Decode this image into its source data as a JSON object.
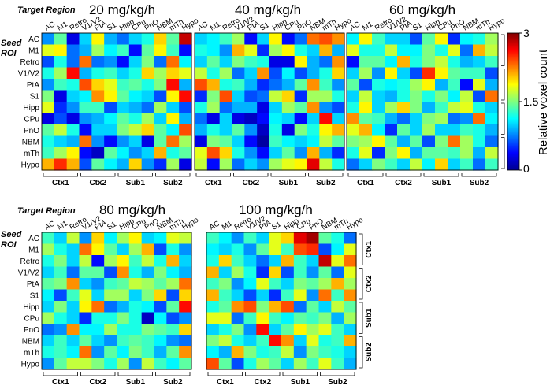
{
  "figure": {
    "target_region_label": "Target Region",
    "seed_label_line1": "Seed",
    "seed_label_line2": "ROI"
  },
  "colorbar": {
    "label": "Relative voxel count",
    "tick_top": "3",
    "tick_mid": "1.5",
    "tick_bottom": "0"
  },
  "chart_data": [
    {
      "type": "heatmap",
      "title": "20 mg/kg/h",
      "x_labels": [
        "AC",
        "M1",
        "Retro",
        "V1/V2",
        "PtA",
        "S1",
        "Hipp",
        "CPu",
        "PnO",
        "NBM",
        "mTh",
        "Hypo"
      ],
      "y_labels": [
        "AC",
        "M1",
        "Retro",
        "V1/V2",
        "PtA",
        "S1",
        "Hipp",
        "CPu",
        "PnO",
        "NBM",
        "mTh",
        "Hypo"
      ],
      "x_groups": [
        "Ctx1",
        "Ctx2",
        "Sub1",
        "Sub2"
      ],
      "color_range": [
        0,
        3
      ],
      "values": [
        [
          0.8,
          1.4,
          0.3,
          1.0,
          1.9,
          0.9,
          0.7,
          1.0,
          1.2,
          2.0,
          1.4,
          2.8
        ],
        [
          1.8,
          1.9,
          0.7,
          0.9,
          1.6,
          1.1,
          1.3,
          0.4,
          1.4,
          1.9,
          1.3,
          0.4
        ],
        [
          0.6,
          1.2,
          0.7,
          2.3,
          0.7,
          0.8,
          0.4,
          1.0,
          1.5,
          0.7,
          2.3,
          1.1
        ],
        [
          1.2,
          1.6,
          2.6,
          0.9,
          1.2,
          1.3,
          1.0,
          1.2,
          2.0,
          1.6,
          2.0,
          1.8
        ],
        [
          0.8,
          1.3,
          1.2,
          2.4,
          2.0,
          1.8,
          1.3,
          1.4,
          1.2,
          1.5,
          2.6,
          0.9
        ],
        [
          1.5,
          0.3,
          1.0,
          1.1,
          2.2,
          1.9,
          1.4,
          1.1,
          1.0,
          0.6,
          1.9,
          2.6
        ],
        [
          1.8,
          0.5,
          0.8,
          1.3,
          1.3,
          0.6,
          1.0,
          0.9,
          0.7,
          1.6,
          1.0,
          0.6
        ],
        [
          0.3,
          0.6,
          0.3,
          0.8,
          0.9,
          1.1,
          1.4,
          1.2,
          1.6,
          1.0,
          1.9,
          0.9
        ],
        [
          1.4,
          1.7,
          1.2,
          0.4,
          1.0,
          1.0,
          1.5,
          1.7,
          2.0,
          1.4,
          1.1,
          2.4
        ],
        [
          1.2,
          1.0,
          0.9,
          2.3,
          0.8,
          0.4,
          0.8,
          1.0,
          0.3,
          1.4,
          2.3,
          1.6
        ],
        [
          1.3,
          1.6,
          1.9,
          0.4,
          0.2,
          1.4,
          1.1,
          0.8,
          1.0,
          2.1,
          1.2,
          1.4
        ],
        [
          2.1,
          2.5,
          2.1,
          0.6,
          1.4,
          1.1,
          0.9,
          2.0,
          0.8,
          0.5,
          1.6,
          0.3
        ]
      ]
    },
    {
      "type": "heatmap",
      "title": "40 mg/kg/h",
      "x_labels": [
        "AC",
        "M1",
        "Retro",
        "V1/V2",
        "PtA",
        "S1",
        "Hipp",
        "CPu",
        "PnO",
        "NBM",
        "mTh",
        "Hypo"
      ],
      "y_labels": [
        "AC",
        "M1",
        "Retro",
        "V1/V2",
        "PtA",
        "S1",
        "Hipp",
        "CPu",
        "PnO",
        "NBM",
        "mTh",
        "Hypo"
      ],
      "x_groups": [
        "Ctx1",
        "Ctx2",
        "Sub1",
        "Sub2"
      ],
      "color_range": [
        0,
        3
      ],
      "values": [
        [
          1.0,
          1.1,
          1.3,
          1.6,
          0.4,
          1.0,
          1.9,
          0.4,
          0.7,
          2.3,
          2.4,
          2.2
        ],
        [
          1.2,
          1.1,
          0.8,
          2.1,
          1.8,
          0.5,
          1.6,
          1.9,
          1.2,
          1.0,
          2.1,
          0.9
        ],
        [
          1.0,
          1.4,
          1.0,
          1.5,
          1.3,
          1.2,
          0.3,
          0.3,
          1.9,
          0.9,
          0.7,
          2.2
        ],
        [
          1.7,
          1.2,
          1.6,
          0.7,
          1.0,
          2.2,
          0.6,
          1.1,
          0.6,
          0.9,
          1.2,
          2.0
        ],
        [
          2.4,
          2.1,
          1.2,
          1.3,
          0.9,
          0.5,
          0.7,
          0.9,
          1.4,
          2.2,
          1.3,
          0.8
        ],
        [
          0.5,
          1.5,
          2.4,
          1.0,
          0.6,
          0.7,
          1.7,
          2.0,
          0.5,
          1.6,
          1.6,
          1.2
        ],
        [
          1.2,
          1.6,
          0.7,
          0.9,
          0.9,
          0.3,
          1.0,
          1.6,
          1.4,
          2.2,
          0.8,
          0.6
        ],
        [
          0.7,
          0.3,
          1.0,
          0.3,
          0.2,
          0.4,
          1.1,
          1.0,
          0.4,
          1.0,
          2.6,
          1.0
        ],
        [
          0.9,
          1.2,
          1.0,
          1.4,
          0.8,
          0.2,
          1.2,
          0.3,
          1.5,
          1.2,
          1.9,
          2.1
        ],
        [
          0.3,
          1.5,
          1.4,
          1.0,
          0.4,
          0.1,
          1.3,
          1.1,
          1.0,
          1.1,
          1.7,
          1.4
        ],
        [
          1.8,
          2.4,
          2.0,
          1.2,
          0.8,
          0.4,
          1.0,
          1.4,
          0.8,
          2.1,
          0.9,
          0.5
        ],
        [
          1.7,
          0.4,
          1.6,
          0.7,
          1.0,
          0.8,
          1.6,
          1.8,
          1.9,
          2.7,
          1.7,
          1.2
        ]
      ]
    },
    {
      "type": "heatmap",
      "title": "60 mg/kg/h",
      "x_labels": [
        "AC",
        "M1",
        "Retro",
        "V1/V2",
        "PtA",
        "S1",
        "Hipp",
        "CPu",
        "PnO",
        "NBM",
        "mTh",
        "Hypo"
      ],
      "y_labels": [
        "AC",
        "M1",
        "Retro",
        "V1/V2",
        "PtA",
        "S1",
        "Hipp",
        "CPu",
        "PnO",
        "NBM",
        "mTh",
        "Hypo"
      ],
      "x_groups": [
        "Ctx1",
        "Ctx2",
        "Sub1",
        "Sub2"
      ],
      "color_range": [
        0,
        3
      ],
      "values": [
        [
          1.1,
          1.9,
          1.3,
          1.0,
          1.0,
          0.6,
          1.4,
          1.9,
          0.5,
          1.1,
          1.2,
          1.6
        ],
        [
          1.8,
          1.2,
          1.2,
          1.7,
          1.1,
          1.1,
          1.5,
          1.2,
          1.8,
          0.7,
          2.1,
          1.7
        ],
        [
          0.4,
          1.4,
          1.4,
          1.1,
          2.1,
          1.2,
          1.5,
          1.7,
          1.2,
          0.9,
          1.0,
          1.3
        ],
        [
          1.0,
          1.6,
          0.8,
          1.9,
          1.0,
          0.6,
          2.5,
          1.9,
          1.4,
          1.3,
          1.3,
          0.6
        ],
        [
          1.4,
          0.6,
          1.2,
          1.1,
          1.2,
          1.6,
          1.9,
          0.9,
          1.3,
          0.4,
          1.8,
          0.9
        ],
        [
          1.0,
          1.7,
          1.0,
          0.9,
          1.2,
          1.5,
          1.2,
          1.5,
          1.1,
          1.7,
          0.6,
          2.3
        ],
        [
          1.2,
          1.9,
          1.0,
          1.6,
          2.0,
          1.5,
          0.9,
          1.3,
          1.7,
          1.8,
          1.2,
          1.0
        ],
        [
          2.2,
          1.4,
          1.3,
          0.9,
          0.7,
          1.0,
          1.5,
          1.6,
          0.7,
          0.8,
          2.3,
          1.1
        ],
        [
          1.8,
          2.1,
          1.1,
          0.5,
          1.4,
          1.0,
          1.6,
          1.0,
          1.0,
          1.3,
          1.2,
          0.9
        ],
        [
          1.5,
          1.6,
          1.9,
          1.4,
          0.9,
          1.4,
          0.6,
          1.5,
          2.3,
          1.6,
          1.2,
          0.7
        ],
        [
          1.2,
          1.8,
          0.5,
          1.5,
          1.9,
          0.9,
          1.4,
          1.4,
          1.3,
          1.6,
          0.9,
          1.7
        ],
        [
          0.7,
          1.0,
          1.5,
          1.3,
          1.0,
          1.7,
          1.1,
          2.0,
          1.0,
          1.3,
          0.7,
          1.3
        ]
      ]
    },
    {
      "type": "heatmap",
      "title": "80 mg/kg/h",
      "x_labels": [
        "AC",
        "M1",
        "Retro",
        "V1/V2",
        "PtA",
        "S1",
        "Hipp",
        "CPu",
        "PnO",
        "NBM",
        "mTh",
        "Hypo"
      ],
      "y_labels": [
        "AC",
        "M1",
        "Retro",
        "V1/V2",
        "PtA",
        "S1",
        "Hipp",
        "CPu",
        "PnO",
        "NBM",
        "mTh",
        "Hypo"
      ],
      "x_groups": [
        "Ctx1",
        "Ctx2",
        "Sub1",
        "Sub2"
      ],
      "color_range": [
        0,
        3
      ],
      "values": [
        [
          1.3,
          1.0,
          1.7,
          0.8,
          2.0,
          1.1,
          1.6,
          1.9,
          1.0,
          1.1,
          1.8,
          1.7
        ],
        [
          1.6,
          1.2,
          1.0,
          2.3,
          1.9,
          1.4,
          1.0,
          1.6,
          2.1,
          0.6,
          1.2,
          0.8
        ],
        [
          1.2,
          1.5,
          1.0,
          1.7,
          0.4,
          1.6,
          1.9,
          1.3,
          1.7,
          1.2,
          2.1,
          1.0
        ],
        [
          1.0,
          1.3,
          0.7,
          1.4,
          1.4,
          0.6,
          2.2,
          1.2,
          0.9,
          1.5,
          1.1,
          0.9
        ],
        [
          1.4,
          1.5,
          2.2,
          1.0,
          0.8,
          1.3,
          1.4,
          1.7,
          1.6,
          1.4,
          1.6,
          2.3
        ],
        [
          1.1,
          0.6,
          1.3,
          1.8,
          1.0,
          1.6,
          1.6,
          1.0,
          1.5,
          2.0,
          0.6,
          2.0
        ],
        [
          1.0,
          1.5,
          1.0,
          1.9,
          2.3,
          0.7,
          0.9,
          1.2,
          1.1,
          0.6,
          1.4,
          2.6
        ],
        [
          1.6,
          1.2,
          1.0,
          0.5,
          1.2,
          1.2,
          1.5,
          1.2,
          0.2,
          1.1,
          0.6,
          0.8
        ],
        [
          0.7,
          0.8,
          2.2,
          1.1,
          1.1,
          1.6,
          1.2,
          1.2,
          1.5,
          1.4,
          1.3,
          2.0
        ],
        [
          1.0,
          1.3,
          1.0,
          1.4,
          1.0,
          0.8,
          1.3,
          1.4,
          1.3,
          1.1,
          0.8,
          0.7
        ],
        [
          1.2,
          1.3,
          1.1,
          2.3,
          0.8,
          1.4,
          1.1,
          1.5,
          1.3,
          0.9,
          1.4,
          2.2
        ],
        [
          0.8,
          1.4,
          1.7,
          1.7,
          1.5,
          1.2,
          1.6,
          0.8,
          1.7,
          1.3,
          1.1,
          1.4
        ]
      ]
    },
    {
      "type": "heatmap",
      "title": "100 mg/kg/h",
      "x_labels": [
        "AC",
        "M1",
        "Retro",
        "V1/V2",
        "PtA",
        "S1",
        "Hipp",
        "CPu",
        "PnO",
        "NBM",
        "mTh",
        "Hypo"
      ],
      "y_labels": [
        "AC",
        "M1",
        "Retro",
        "V1/V2",
        "PtA",
        "S1",
        "Hipp",
        "CPu",
        "PnO",
        "NBM",
        "mTh",
        "Hypo"
      ],
      "x_groups": [
        "Ctx1",
        "Ctx2",
        "Sub1",
        "Sub2"
      ],
      "color_range": [
        0,
        3
      ],
      "values": [
        [
          1.3,
          1.1,
          0.8,
          1.3,
          1.0,
          1.8,
          2.0,
          2.7,
          2.9,
          1.4,
          1.2,
          0.7
        ],
        [
          1.1,
          1.0,
          1.2,
          0.8,
          1.4,
          1.8,
          1.3,
          2.4,
          2.5,
          0.6,
          1.1,
          1.8
        ],
        [
          1.2,
          2.0,
          1.3,
          1.0,
          0.7,
          1.0,
          2.1,
          1.3,
          1.0,
          2.8,
          1.8,
          2.3
        ],
        [
          2.1,
          1.0,
          1.6,
          1.2,
          0.5,
          2.0,
          0.6,
          1.3,
          0.8,
          1.4,
          0.7,
          1.8
        ],
        [
          1.3,
          1.5,
          0.8,
          1.1,
          1.8,
          1.3,
          1.0,
          1.5,
          1.4,
          1.6,
          2.1,
          1.6
        ],
        [
          2.1,
          1.3,
          1.0,
          0.6,
          1.0,
          0.5,
          1.3,
          1.8,
          0.8,
          2.3,
          1.3,
          2.2
        ],
        [
          1.2,
          1.4,
          2.2,
          2.4,
          1.5,
          2.1,
          2.4,
          0.7,
          1.4,
          1.0,
          1.7,
          1.4
        ],
        [
          1.8,
          1.8,
          0.7,
          1.3,
          1.9,
          1.3,
          1.1,
          1.4,
          1.3,
          1.5,
          0.9,
          1.6
        ],
        [
          1.0,
          1.2,
          1.5,
          0.8,
          2.6,
          1.0,
          1.4,
          1.9,
          1.6,
          1.8,
          1.3,
          1.0
        ],
        [
          1.5,
          1.7,
          1.2,
          1.0,
          1.3,
          2.6,
          2.2,
          1.0,
          1.8,
          1.2,
          1.3,
          2.1
        ],
        [
          1.1,
          0.9,
          2.1,
          1.5,
          1.2,
          1.3,
          1.7,
          0.8,
          1.5,
          1.3,
          1.2,
          1.0
        ],
        [
          2.4,
          1.4,
          0.6,
          1.2,
          1.6,
          1.4,
          1.0,
          1.6,
          1.3,
          1.8,
          1.3,
          0.9
        ]
      ]
    }
  ]
}
